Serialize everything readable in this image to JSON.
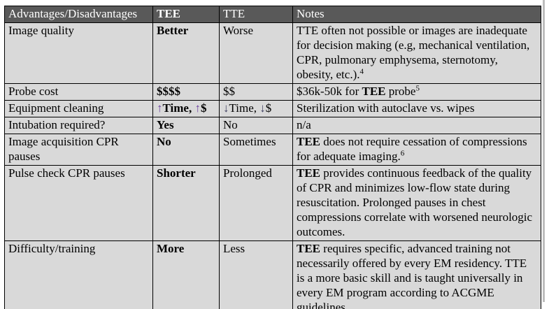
{
  "colors": {
    "page_bg": "#ffffff",
    "header_bg": "#595959",
    "header_text": "#ffffff",
    "row_bg": "#d9d9d9",
    "border": "#000000",
    "text": "#000000",
    "up_arrow": "#6b3fa0",
    "down_arrow": "#3f4060",
    "right_edge_line": "#bdbdbd"
  },
  "table": {
    "header": [
      {
        "label": "Advantages/Disadvantages",
        "bold": false
      },
      {
        "label": "TEE",
        "bold": true
      },
      {
        "label": "TTE",
        "bold": false
      },
      {
        "label": "Notes",
        "bold": false
      }
    ],
    "rows": [
      {
        "feature": "Image quality",
        "tee": [
          {
            "text": "Better",
            "bold": true
          }
        ],
        "tte": [
          {
            "text": "Worse"
          }
        ],
        "notes": [
          {
            "text": "TTE often not possible or images are inadequate for decision making (e.g, mechanical ventilation, CPR, pulmonary emphysema, sternotomy, obesity, etc.)."
          },
          {
            "text": "4",
            "sup": true
          }
        ]
      },
      {
        "feature": "Probe cost",
        "tee": [
          {
            "text": "$$$$",
            "bold": true
          }
        ],
        "tte": [
          {
            "text": "$$"
          }
        ],
        "notes": [
          {
            "text": "$36k-50k for "
          },
          {
            "text": "TEE",
            "bold": true
          },
          {
            "text": " probe"
          },
          {
            "text": "5",
            "sup": true
          }
        ]
      },
      {
        "feature": "Equipment cleaning",
        "tee": [
          {
            "text": "↑",
            "bold": true,
            "tone": "up"
          },
          {
            "text": "Time, ",
            "bold": true
          },
          {
            "text": "↑",
            "bold": true,
            "tone": "up"
          },
          {
            "text": "$",
            "bold": true
          }
        ],
        "tte": [
          {
            "text": "↓",
            "tone": "down"
          },
          {
            "text": "Time, "
          },
          {
            "text": "↓",
            "tone": "down"
          },
          {
            "text": "$"
          }
        ],
        "notes": [
          {
            "text": "Sterilization with autoclave vs. wipes"
          }
        ]
      },
      {
        "feature": "Intubation required?",
        "tee": [
          {
            "text": "Yes",
            "bold": true
          }
        ],
        "tte": [
          {
            "text": "No"
          }
        ],
        "notes": [
          {
            "text": "n/a"
          }
        ]
      },
      {
        "feature": "Image acquisition CPR pauses",
        "tee": [
          {
            "text": "No",
            "bold": true
          }
        ],
        "tte": [
          {
            "text": "Sometimes"
          }
        ],
        "notes": [
          {
            "text": "TEE",
            "bold": true
          },
          {
            "text": " does not require cessation of compressions for adequate imaging."
          },
          {
            "text": "6",
            "sup": true
          }
        ]
      },
      {
        "feature": "Pulse check CPR pauses",
        "tee": [
          {
            "text": "Shorter",
            "bold": true
          }
        ],
        "tte": [
          {
            "text": "Prolonged"
          }
        ],
        "notes": [
          {
            "text": "TEE",
            "bold": true
          },
          {
            "text": " provides continuous feedback of the quality of CPR and minimizes low-flow state during resuscitation. Prolonged pauses in chest compressions correlate with worsened neurologic outcomes."
          }
        ]
      },
      {
        "feature": "Difficulty/training",
        "tee": [
          {
            "text": "More",
            "bold": true
          }
        ],
        "tte": [
          {
            "text": "Less"
          }
        ],
        "notes": [
          {
            "text": "TEE",
            "bold": true
          },
          {
            "text": " requires specific, advanced training not necessarily offered by every EM residency. TTE is a more basic skill and is taught universally in every EM program according to ACGME guidelines"
          }
        ]
      }
    ]
  }
}
